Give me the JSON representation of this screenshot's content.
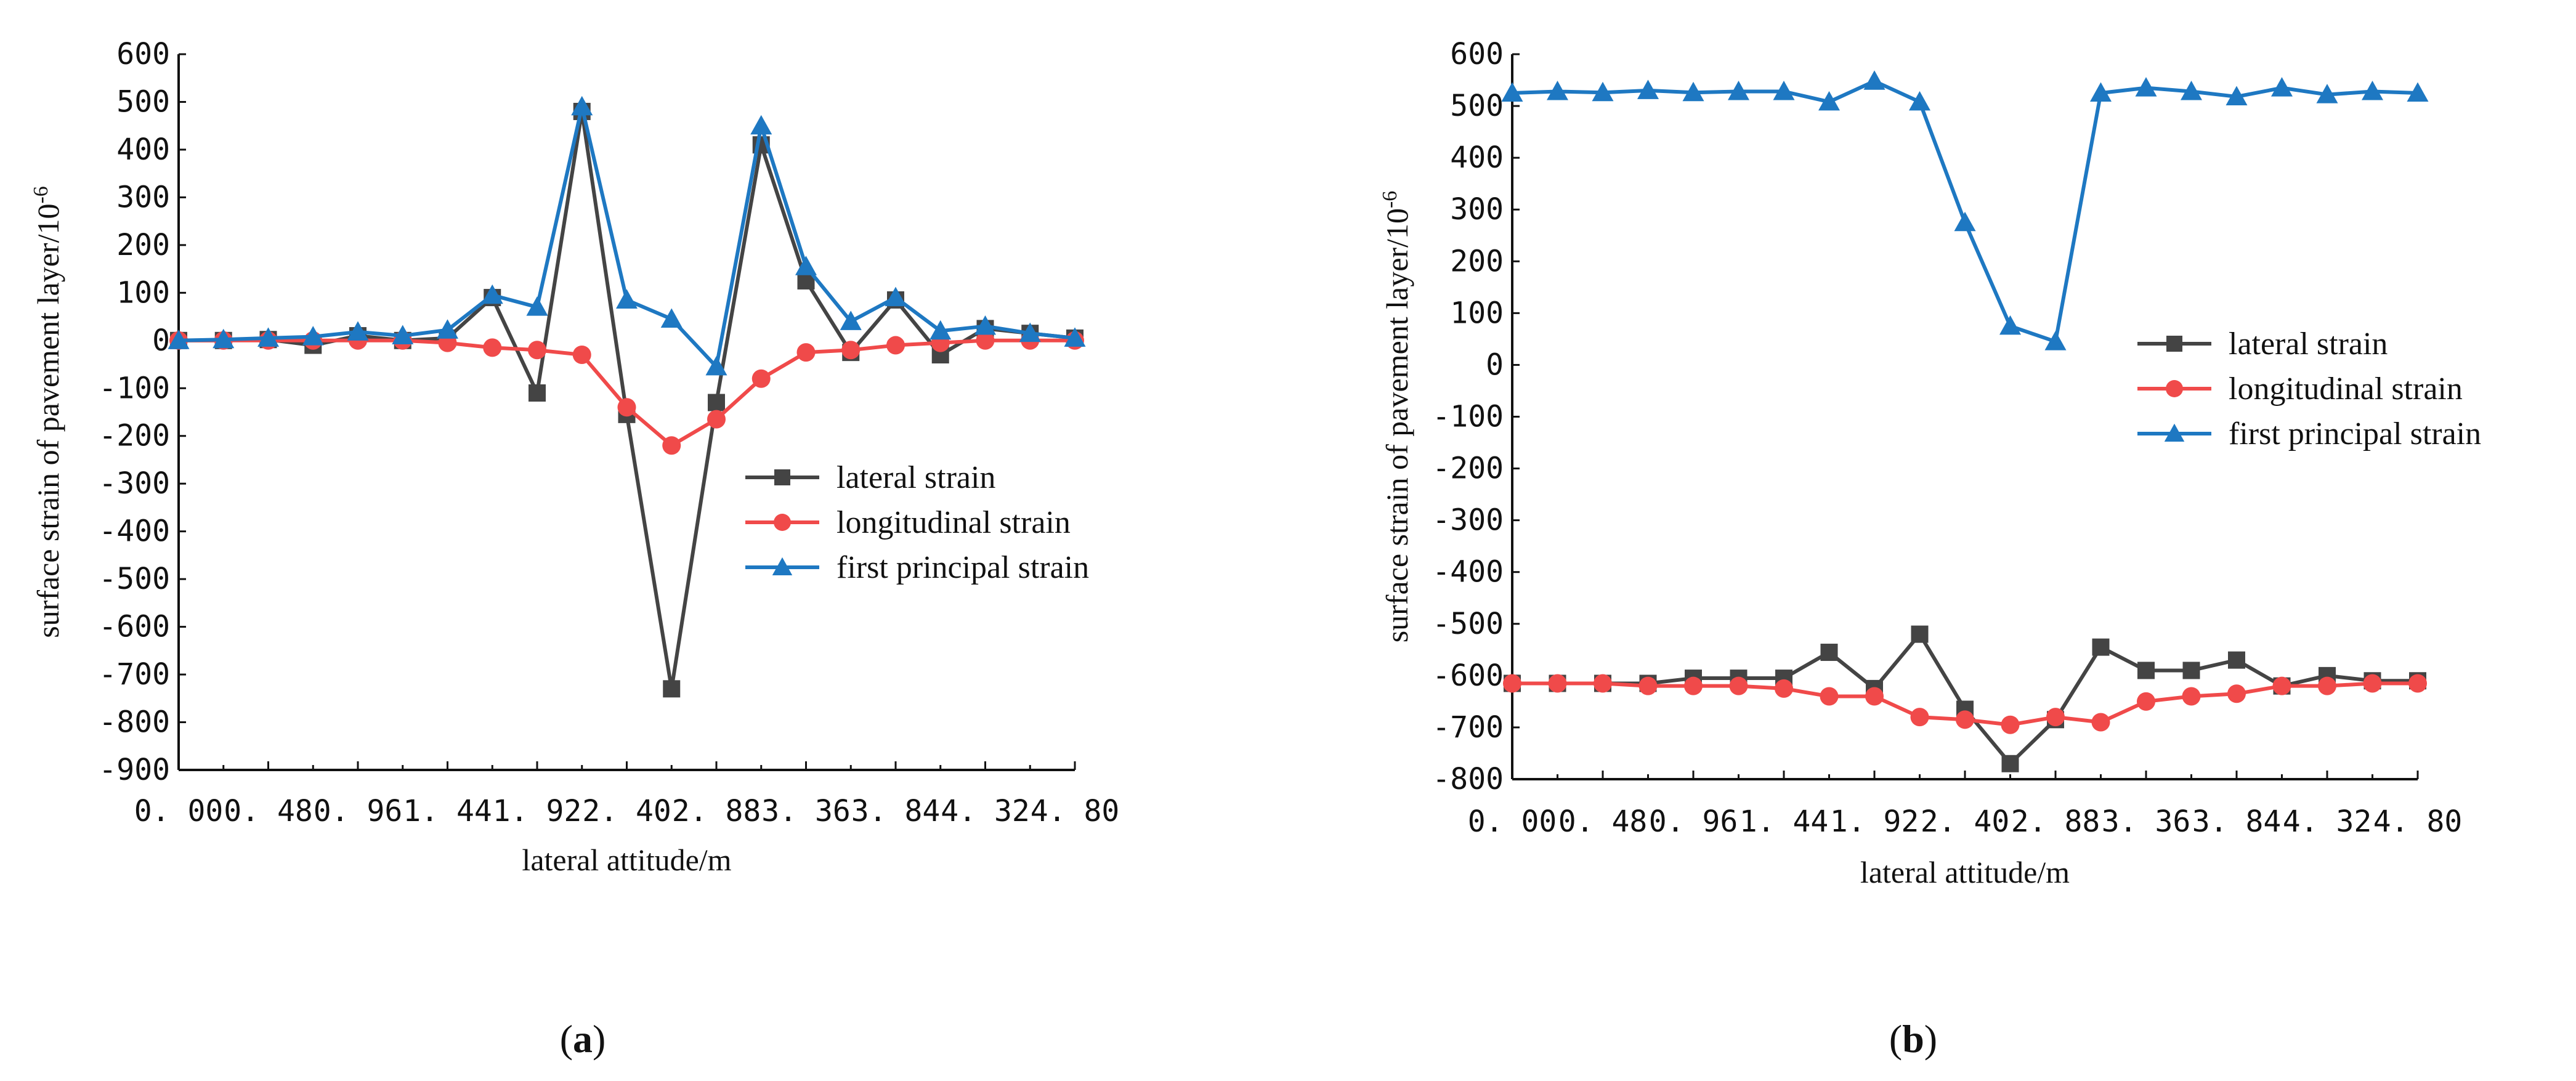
{
  "panels": [
    {
      "label_open": "(",
      "label_letter": "a",
      "label_close": ")",
      "chart_ref": 0
    },
    {
      "label_open": "(",
      "label_letter": "b",
      "label_close": ")",
      "chart_ref": 1
    }
  ],
  "chart_data": [
    {
      "type": "line",
      "title": "",
      "xlabel": "lateral attitude/m",
      "ylabel": "surface strain of pavement layer/10",
      "ylabel_sup": "-6",
      "x": [
        0,
        0.24,
        0.48,
        0.72,
        0.96,
        1.2,
        1.44,
        1.68,
        1.92,
        2.16,
        2.4,
        2.64,
        2.88,
        3.12,
        3.36,
        3.6,
        3.84,
        4.08,
        4.32,
        4.56,
        4.8
      ],
      "xlim": [
        0,
        4.8
      ],
      "ylim": [
        -900,
        600
      ],
      "xticks": [
        "0. 00",
        "0. 48",
        "0. 96",
        "1. 44",
        "1. 92",
        "2. 40",
        "2. 88",
        "3. 36",
        "3. 84",
        "4. 32",
        "4. 80"
      ],
      "xtick_values": [
        0,
        0.48,
        0.96,
        1.44,
        1.92,
        2.4,
        2.88,
        3.36,
        3.84,
        4.32,
        4.8
      ],
      "yticks": [
        600,
        500,
        400,
        300,
        200,
        100,
        0,
        -100,
        -200,
        -300,
        -400,
        -500,
        -600,
        -700,
        -800,
        -900
      ],
      "legend_position": "center-right",
      "series": [
        {
          "name": "lateral strain",
          "color": "#444444",
          "marker": "square",
          "values": [
            0,
            0,
            2,
            -10,
            10,
            0,
            5,
            90,
            -110,
            480,
            -155,
            -730,
            -130,
            410,
            125,
            -25,
            85,
            -30,
            25,
            15,
            5
          ]
        },
        {
          "name": "longitudinal strain",
          "color": "#f04a4a",
          "marker": "circle",
          "values": [
            0,
            0,
            0,
            0,
            0,
            0,
            -5,
            -15,
            -20,
            -30,
            -140,
            -220,
            -165,
            -80,
            -25,
            -20,
            -10,
            -5,
            0,
            0,
            0
          ]
        },
        {
          "name": "first principal strain",
          "color": "#1e78c2",
          "marker": "triangle",
          "values": [
            0,
            2,
            5,
            8,
            18,
            10,
            22,
            95,
            70,
            490,
            85,
            45,
            -55,
            450,
            155,
            40,
            90,
            20,
            30,
            15,
            5
          ]
        }
      ]
    },
    {
      "type": "line",
      "title": "",
      "xlabel": "lateral attitude/m",
      "ylabel": "surface strain of pavement layer/10",
      "ylabel_sup": "-6",
      "x": [
        0,
        0.24,
        0.48,
        0.72,
        0.96,
        1.2,
        1.44,
        1.68,
        1.92,
        2.16,
        2.4,
        2.64,
        2.88,
        3.12,
        3.36,
        3.6,
        3.84,
        4.08,
        4.32,
        4.56,
        4.8
      ],
      "xlim": [
        0,
        4.8
      ],
      "ylim": [
        -800,
        600
      ],
      "xticks": [
        "0. 00",
        "0. 48",
        "0. 96",
        "1. 44",
        "1. 92",
        "2. 40",
        "2. 88",
        "3. 36",
        "3. 84",
        "4. 32",
        "4. 80"
      ],
      "xtick_values": [
        0,
        0.48,
        0.96,
        1.44,
        1.92,
        2.4,
        2.88,
        3.36,
        3.84,
        4.32,
        4.8
      ],
      "yticks": [
        600,
        500,
        400,
        300,
        200,
        100,
        0,
        -100,
        -200,
        -300,
        -400,
        -500,
        -600,
        -700,
        -800
      ],
      "legend_position": "center-right",
      "series": [
        {
          "name": "lateral strain",
          "color": "#444444",
          "marker": "square",
          "values": [
            -615,
            -615,
            -615,
            -615,
            -605,
            -605,
            -605,
            -555,
            -625,
            -520,
            -665,
            -770,
            -685,
            -545,
            -590,
            -590,
            -570,
            -620,
            -600,
            -610,
            -610
          ]
        },
        {
          "name": "longitudinal strain",
          "color": "#f04a4a",
          "marker": "circle",
          "values": [
            -615,
            -615,
            -615,
            -620,
            -620,
            -620,
            -625,
            -640,
            -640,
            -680,
            -685,
            -695,
            -680,
            -690,
            -650,
            -640,
            -635,
            -620,
            -620,
            -615,
            -615
          ]
        },
        {
          "name": "first principal strain",
          "color": "#1e78c2",
          "marker": "triangle",
          "values": [
            525,
            528,
            526,
            530,
            526,
            528,
            528,
            508,
            548,
            508,
            275,
            75,
            45,
            525,
            535,
            528,
            518,
            535,
            522,
            528,
            525
          ]
        }
      ]
    }
  ]
}
